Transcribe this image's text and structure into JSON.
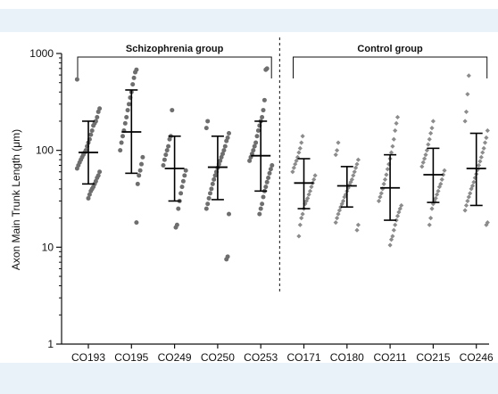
{
  "chart_data": {
    "type": "scatter",
    "title": "",
    "ylabel": "Axon Main Trunk Length (μm)",
    "xlabel": "",
    "yscale": "log",
    "ylim": [
      1,
      1000
    ],
    "yticks": [
      1,
      10,
      100,
      1000
    ],
    "ytick_labels": [
      "1",
      "10",
      "100",
      "1000"
    ],
    "categories": [
      "CO193",
      "CO195",
      "CO249",
      "CO250",
      "CO253",
      "CO171",
      "CO180",
      "CO211",
      "CO215",
      "CO246"
    ],
    "groups": [
      {
        "label": "Schizophrenia group",
        "categories": [
          "CO193",
          "CO195",
          "CO249",
          "CO250",
          "CO253"
        ],
        "marker": "circle",
        "color": "#6e6e6e"
      },
      {
        "label": "Control group",
        "categories": [
          "CO171",
          "CO180",
          "CO211",
          "CO215",
          "CO246"
        ],
        "marker": "diamond",
        "color": "#8c8c8c"
      }
    ],
    "summary": [
      {
        "category": "CO193",
        "mean": 95,
        "lower": 45,
        "upper": 200
      },
      {
        "category": "CO195",
        "mean": 155,
        "lower": 58,
        "upper": 420
      },
      {
        "category": "CO249",
        "mean": 65,
        "lower": 30,
        "upper": 140
      },
      {
        "category": "CO250",
        "mean": 67,
        "lower": 31,
        "upper": 140
      },
      {
        "category": "CO253",
        "mean": 88,
        "lower": 38,
        "upper": 200
      },
      {
        "category": "CO171",
        "mean": 46,
        "lower": 25,
        "upper": 82
      },
      {
        "category": "CO180",
        "mean": 43,
        "lower": 26,
        "upper": 68
      },
      {
        "category": "CO211",
        "mean": 41,
        "lower": 19,
        "upper": 90
      },
      {
        "category": "CO215",
        "mean": 56,
        "lower": 29,
        "upper": 105
      },
      {
        "category": "CO246",
        "mean": 65,
        "lower": 27,
        "upper": 150
      }
    ],
    "points": {
      "CO193": [
        540,
        270,
        250,
        220,
        200,
        190,
        180,
        160,
        145,
        130,
        120,
        110,
        100,
        95,
        90,
        85,
        80,
        75,
        70,
        65,
        60,
        55,
        52,
        48,
        45,
        42,
        40,
        38,
        35,
        32
      ],
      "CO195": [
        680,
        640,
        560,
        480,
        400,
        350,
        300,
        260,
        220,
        190,
        160,
        140,
        120,
        100,
        85,
        72,
        62,
        55,
        45,
        18
      ],
      "CO249": [
        260,
        140,
        130,
        110,
        100,
        90,
        80,
        70,
        62,
        55,
        48,
        42,
        36,
        30,
        25,
        17,
        16
      ],
      "CO250": [
        200,
        170,
        150,
        135,
        125,
        110,
        100,
        92,
        85,
        78,
        72,
        66,
        60,
        55,
        50,
        45,
        40,
        36,
        32,
        28,
        25,
        22,
        8,
        7.5
      ],
      "CO253": [
        700,
        680,
        330,
        260,
        220,
        200,
        180,
        160,
        140,
        120,
        110,
        100,
        92,
        85,
        78,
        70,
        64,
        58,
        52,
        47,
        42,
        38,
        33,
        28,
        25,
        22
      ],
      "CO171": [
        140,
        120,
        105,
        95,
        85,
        78,
        72,
        66,
        60,
        55,
        50,
        46,
        42,
        38,
        35,
        32,
        30,
        28,
        25,
        22,
        20,
        17,
        13
      ],
      "CO180": [
        120,
        100,
        90,
        80,
        72,
        66,
        60,
        55,
        50,
        47,
        44,
        41,
        38,
        35,
        33,
        30,
        28,
        26,
        24,
        22,
        20,
        18,
        17,
        15
      ],
      "CO211": [
        220,
        190,
        160,
        130,
        110,
        95,
        82,
        72,
        64,
        56,
        50,
        45,
        40,
        36,
        33,
        30,
        27,
        25,
        23,
        21,
        19,
        17,
        15,
        13,
        12,
        10.5
      ],
      "CO215": [
        200,
        170,
        150,
        130,
        115,
        100,
        90,
        82,
        75,
        68,
        62,
        56,
        50,
        45,
        42,
        38,
        35,
        32,
        30,
        28,
        25,
        20,
        17
      ],
      "CO246": [
        590,
        380,
        250,
        200,
        160,
        135,
        120,
        105,
        95,
        85,
        77,
        70,
        63,
        57,
        52,
        47,
        43,
        40,
        36,
        33,
        30,
        27,
        24,
        18,
        17
      ]
    }
  }
}
